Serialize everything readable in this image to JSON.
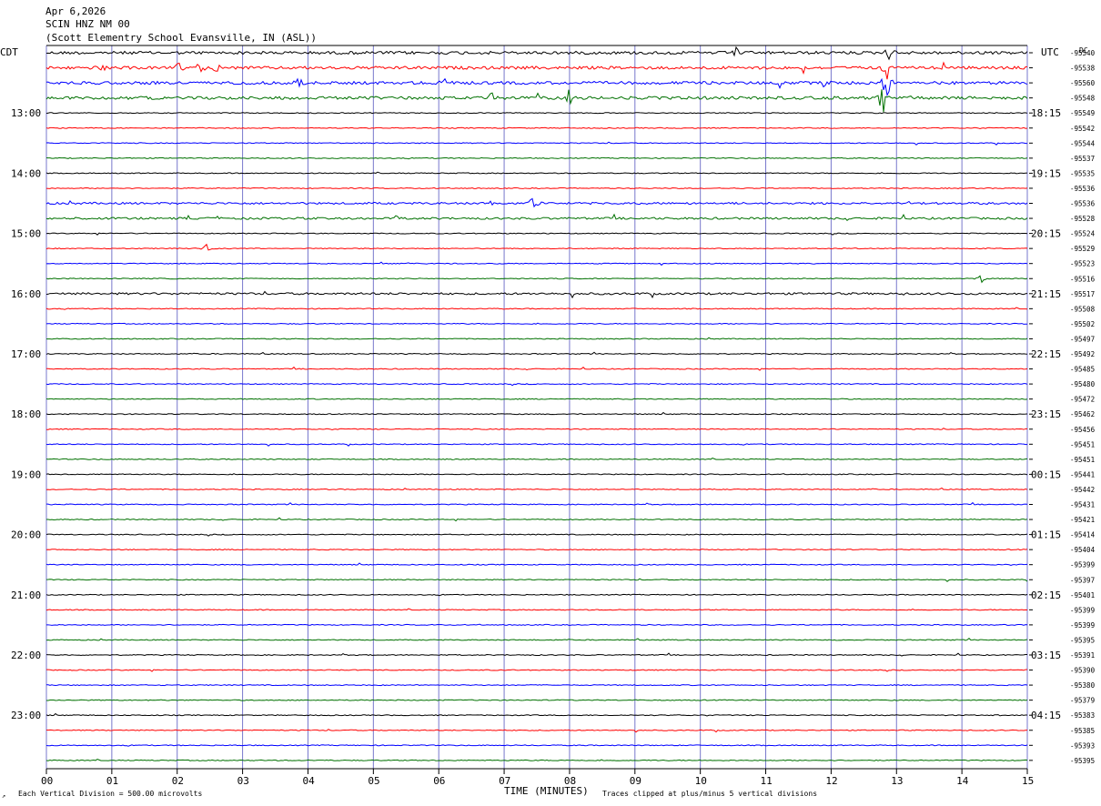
{
  "header": {
    "date": "Apr 6,2026",
    "station": "SCIN HNZ NM 00",
    "location": "(Scott Elementry School Evansville, IN (ASL))"
  },
  "left_tz": "CDT",
  "right_tz": "UTC",
  "dc_label": "DC",
  "footer": {
    "scale": "Each Vertical Division =  500.00 microvolts",
    "xlabel": "TIME (MINUTES)",
    "clip_note": "Traces clipped at plus/minus 5 vertical divisions"
  },
  "chart_data": {
    "type": "line",
    "title": "SCIN HNZ NM 00",
    "xlabel": "TIME (MINUTES)",
    "x_ticks": [
      "00",
      "01",
      "02",
      "03",
      "04",
      "05",
      "06",
      "07",
      "08",
      "09",
      "10",
      "11",
      "12",
      "13",
      "14",
      "15"
    ],
    "xlim": [
      0,
      15
    ],
    "trace_colors": [
      "#000000",
      "#ff0000",
      "#0000ff",
      "#007000"
    ],
    "grid_color": "#7777cc",
    "left_hour_labels": [
      "13:00",
      "14:00",
      "15:00",
      "16:00",
      "17:00",
      "18:00",
      "19:00",
      "20:00",
      "21:00",
      "22:00",
      "23:00"
    ],
    "right_hour_labels": [
      "18:15",
      "19:15",
      "20:15",
      "21:15",
      "22:15",
      "23:15",
      "00:15",
      "01:15",
      "02:15",
      "03:15",
      "04:15"
    ],
    "dc_offsets": [
      "-95540",
      "-95538",
      "-95560",
      "-95548",
      "-95549",
      "-95542",
      "-95544",
      "-95537",
      "-95535",
      "-95536",
      "-95536",
      "-95528",
      "-95524",
      "-95529",
      "-95523",
      "-95516",
      "-95517",
      "-95508",
      "-95502",
      "-95497",
      "-95492",
      "-95485",
      "-95480",
      "-95472",
      "-95462",
      "-95456",
      "-95451",
      "-95451",
      "-95441",
      "-95442",
      "-95431",
      "-95421",
      "-95414",
      "-95404",
      "-95399",
      "-95397",
      "-95401",
      "-95399",
      "-95399",
      "-95395",
      "-95391",
      "-95390",
      "-95380",
      "-95379",
      "-95383",
      "-95385",
      "-95393",
      "-95395"
    ],
    "trace_activity": [
      3,
      3,
      3,
      3,
      1,
      1,
      1,
      1,
      1,
      1,
      2,
      2,
      1,
      1,
      1,
      1,
      2,
      1,
      1,
      1,
      1,
      1,
      1,
      1,
      1,
      1,
      1,
      1,
      1,
      1,
      1,
      1,
      1,
      1,
      1,
      1,
      1,
      1,
      1,
      1,
      1,
      1,
      1,
      1,
      1,
      1,
      1,
      1
    ],
    "events": [
      {
        "trace": 0,
        "minute": 10.55,
        "amp": 8
      },
      {
        "trace": 0,
        "minute": 12.9,
        "amp": 14
      },
      {
        "trace": 1,
        "minute": 2.05,
        "amp": 10
      },
      {
        "trace": 1,
        "minute": 2.35,
        "amp": 8
      },
      {
        "trace": 1,
        "minute": 2.6,
        "amp": 7
      },
      {
        "trace": 1,
        "minute": 0.85,
        "amp": 6
      },
      {
        "trace": 1,
        "minute": 12.85,
        "amp": 14
      },
      {
        "trace": 2,
        "minute": 3.85,
        "amp": 9
      },
      {
        "trace": 2,
        "minute": 6.1,
        "amp": 7
      },
      {
        "trace": 2,
        "minute": 12.85,
        "amp": 28
      },
      {
        "trace": 2,
        "minute": 11.9,
        "amp": 6
      },
      {
        "trace": 3,
        "minute": 6.8,
        "amp": 8
      },
      {
        "trace": 3,
        "minute": 8.0,
        "amp": 12
      },
      {
        "trace": 3,
        "minute": 12.8,
        "amp": 30
      },
      {
        "trace": 10,
        "minute": 6.8,
        "amp": 6
      },
      {
        "trace": 10,
        "minute": 7.45,
        "amp": 10
      },
      {
        "trace": 11,
        "minute": 5.35,
        "amp": 5
      },
      {
        "trace": 13,
        "minute": 2.45,
        "amp": 7
      },
      {
        "trace": 15,
        "minute": 14.3,
        "amp": 7
      },
      {
        "trace": 44,
        "minute": 14.6,
        "amp": 2
      }
    ]
  }
}
